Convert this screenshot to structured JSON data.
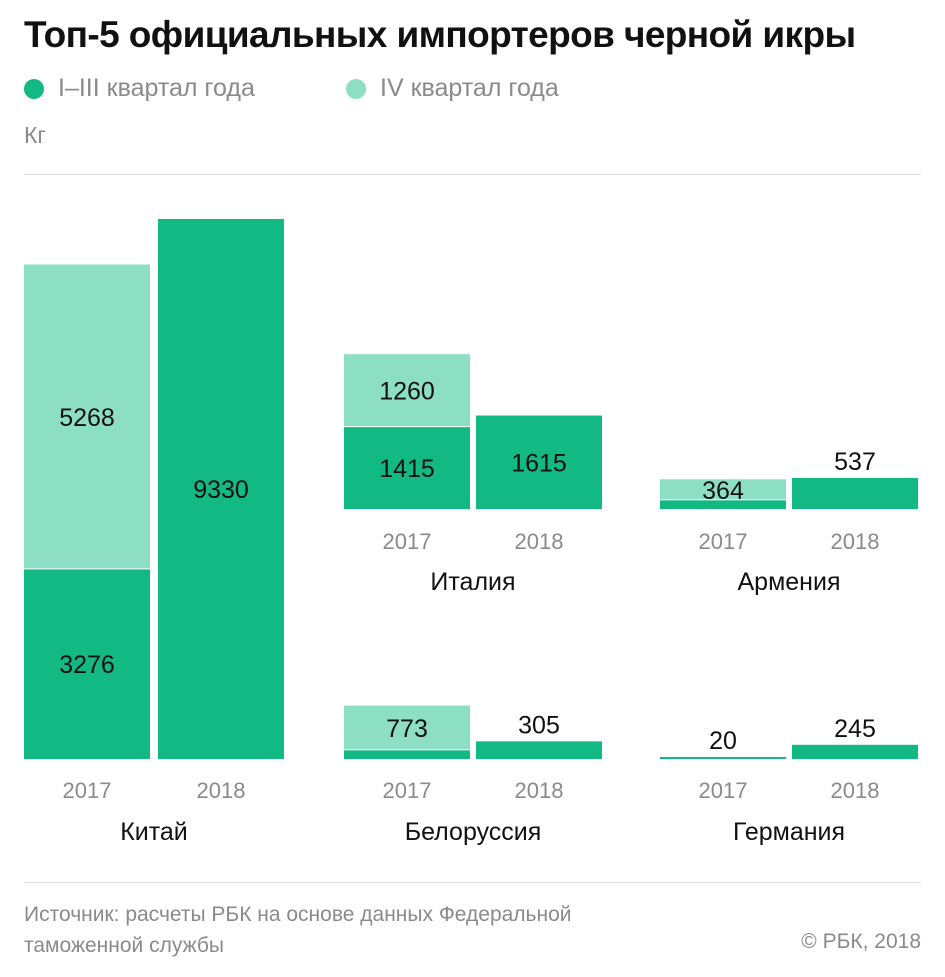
{
  "title": "Топ-5 официальных импортеров черной икры",
  "legend": {
    "items": [
      {
        "label": "I–III квартал года",
        "color": "#13b983"
      },
      {
        "label": "IV квартал года",
        "color": "#8cdfc3"
      }
    ]
  },
  "unit": "Кг",
  "source": "Источник: расчеты РБК на основе данных Федеральной таможенной службы",
  "source_lines": [
    "Источник: расчеты РБК на основе данных Федеральной",
    "таможенной службы"
  ],
  "copyright": "© РБК, 2018",
  "chart_data": {
    "type": "bar",
    "stacked": true,
    "unit": "Кг",
    "categories": [
      "2017",
      "2018"
    ],
    "series_names": [
      "I–III квартал года",
      "IV квартал года"
    ],
    "colors": {
      "q1_3": "#13b983",
      "q4": "#8cdfc3"
    },
    "panels": [
      {
        "name": "Китай",
        "bars": [
          {
            "year": "2017",
            "q1_3": 3276,
            "q4": 5268
          },
          {
            "year": "2018",
            "q1_3": 9330,
            "q4": 0
          }
        ]
      },
      {
        "name": "Италия",
        "bars": [
          {
            "year": "2017",
            "q1_3": 1415,
            "q4": 1260
          },
          {
            "year": "2018",
            "q1_3": 1615,
            "q4": 0
          }
        ]
      },
      {
        "name": "Армения",
        "bars": [
          {
            "year": "2017",
            "q1_3": 150,
            "q4": 364
          },
          {
            "year": "2018",
            "q1_3": 537,
            "q4": 0
          }
        ]
      },
      {
        "name": "Белоруссия",
        "bars": [
          {
            "year": "2017",
            "q1_3": 150,
            "q4": 773
          },
          {
            "year": "2018",
            "q1_3": 305,
            "q4": 0
          }
        ]
      },
      {
        "name": "Германия",
        "bars": [
          {
            "year": "2017",
            "q1_3": 20,
            "q4": 0
          },
          {
            "year": "2018",
            "q1_3": 245,
            "q4": 0
          }
        ]
      }
    ]
  }
}
